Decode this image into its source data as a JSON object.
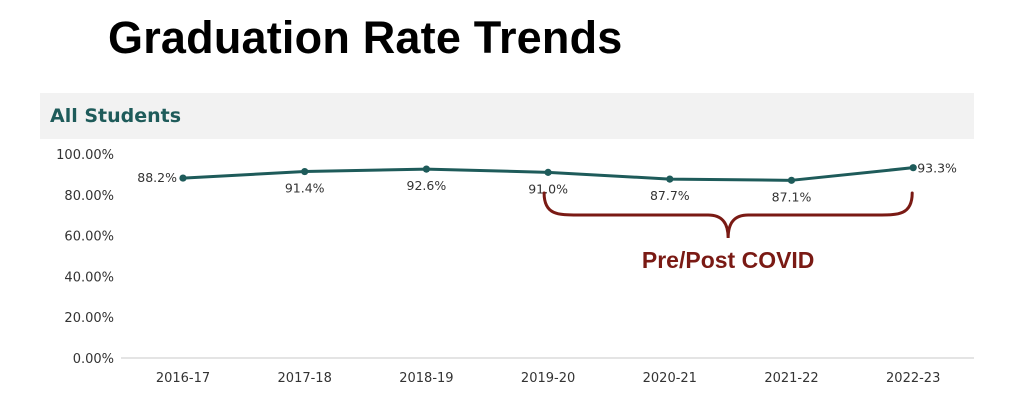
{
  "slide": {
    "title": "Graduation Rate Trends"
  },
  "colors": {
    "series": "#1e5b5a",
    "panel_title": "#1e5b5a",
    "annotation": "#7a1a14",
    "axis": "#c8c8c8"
  },
  "chart_data": {
    "type": "line",
    "title": "All Students",
    "xlabel": "",
    "ylabel": "",
    "categories": [
      "2016-17",
      "2017-18",
      "2018-19",
      "2019-20",
      "2020-21",
      "2021-22",
      "2022-23"
    ],
    "series": [
      {
        "values": [
          88.2,
          91.4,
          92.6,
          91.0,
          87.7,
          87.1,
          93.3
        ],
        "data_labels": [
          "88.2%",
          "91.4%",
          "92.6%",
          "91.0%",
          "87.7%",
          "87.1%",
          "93.3%"
        ]
      }
    ],
    "ylim": [
      0,
      100
    ],
    "yticks": [
      "0.00%",
      "20.00%",
      "40.00%",
      "60.00%",
      "80.00%",
      "100.00%"
    ],
    "grid": false,
    "legend": "none",
    "annotation": {
      "text": "Pre/Post COVID",
      "span": [
        "2019-20",
        "2022-23"
      ],
      "shape": "curly-brace"
    }
  }
}
